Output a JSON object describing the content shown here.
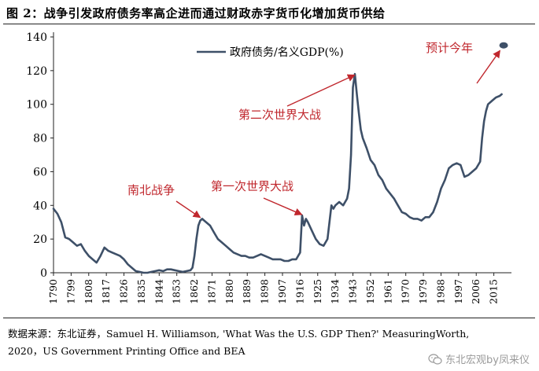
{
  "figure": {
    "title": "图 2：战争引发政府债务率高企进而通过财政赤字货币化增加货币供给",
    "source_line1": "数据来源：东北证券，Samuel H. Williamson, 'What Was the U.S. GDP Then?' MeasuringWorth,",
    "source_line2": "2020，US Government Printing Office and BEA",
    "watermark": "东北宏观by凤来仪",
    "watermark_icon": "wechat-icon"
  },
  "chart_data": {
    "type": "line",
    "title": "",
    "xlabel": "",
    "ylabel": "",
    "ylim": [
      0,
      140
    ],
    "yticks": [
      0,
      20,
      40,
      60,
      80,
      100,
      120,
      140
    ],
    "xlim": [
      1790,
      2024
    ],
    "xticks": [
      "1790",
      "1799",
      "1808",
      "1817",
      "1826",
      "1835",
      "1844",
      "1853",
      "1862",
      "1871",
      "1880",
      "1889",
      "1898",
      "1907",
      "1916",
      "1925",
      "1934",
      "1943",
      "1952",
      "1961",
      "1970",
      "1979",
      "1988",
      "1997",
      "2006",
      "2015"
    ],
    "grid": false,
    "legend_position": "top-center",
    "line_color": "#3e5068",
    "annotation_color": "#c0272d",
    "series": [
      {
        "name": "政府债务/名义GDP(%)",
        "x": [
          1790,
          1792,
          1794,
          1796,
          1798,
          1800,
          1802,
          1804,
          1806,
          1808,
          1810,
          1812,
          1814,
          1816,
          1818,
          1820,
          1822,
          1824,
          1826,
          1828,
          1830,
          1832,
          1834,
          1836,
          1838,
          1840,
          1842,
          1844,
          1846,
          1848,
          1850,
          1852,
          1854,
          1856,
          1858,
          1860,
          1861,
          1862,
          1863,
          1864,
          1865,
          1866,
          1867,
          1868,
          1870,
          1872,
          1874,
          1876,
          1878,
          1880,
          1882,
          1884,
          1886,
          1888,
          1890,
          1892,
          1894,
          1896,
          1898,
          1900,
          1902,
          1904,
          1906,
          1908,
          1910,
          1912,
          1914,
          1916,
          1917,
          1918,
          1919,
          1920,
          1922,
          1924,
          1926,
          1928,
          1930,
          1931,
          1932,
          1933,
          1934,
          1936,
          1938,
          1940,
          1941,
          1942,
          1943,
          1944,
          1945,
          1946,
          1947,
          1948,
          1950,
          1952,
          1954,
          1956,
          1958,
          1960,
          1962,
          1964,
          1966,
          1968,
          1970,
          1972,
          1974,
          1976,
          1978,
          1980,
          1982,
          1984,
          1986,
          1988,
          1990,
          1992,
          1994,
          1996,
          1998,
          2000,
          2002,
          2004,
          2006,
          2008,
          2009,
          2010,
          2011,
          2012,
          2014,
          2016,
          2018,
          2019
        ],
        "values": [
          38,
          35,
          30,
          21,
          20,
          18,
          16,
          17,
          13,
          10,
          8,
          6,
          10,
          15,
          13,
          12,
          11,
          10,
          8,
          5,
          3,
          1,
          0.5,
          0,
          0,
          0.5,
          1,
          1.5,
          1,
          2,
          2,
          1.5,
          1,
          0.5,
          1,
          1.5,
          3,
          10,
          20,
          28,
          31,
          32,
          31,
          30,
          28,
          24,
          20,
          18,
          16,
          14,
          12,
          11,
          10,
          10,
          9,
          9,
          10,
          11,
          10,
          9,
          8,
          8,
          8,
          7,
          7,
          8,
          8,
          12,
          34,
          28,
          32,
          30,
          25,
          20,
          17,
          16,
          20,
          30,
          40,
          38,
          40,
          42,
          40,
          44,
          50,
          70,
          110,
          118,
          106,
          95,
          85,
          80,
          74,
          67,
          64,
          58,
          55,
          50,
          47,
          44,
          40,
          36,
          35,
          33,
          32,
          32,
          31,
          33,
          33,
          36,
          42,
          50,
          55,
          62,
          64,
          65,
          64,
          57,
          58,
          60,
          62,
          66,
          80,
          90,
          96,
          100,
          102,
          104,
          105,
          106
        ]
      }
    ],
    "projection": {
      "label": "预计今年",
      "x": 2020,
      "value": 135
    },
    "annotations": [
      {
        "text": "南北战争",
        "x": 1866,
        "value": 32
      },
      {
        "text": "第一次世界大战",
        "x": 1918,
        "value": 34
      },
      {
        "text": "第二次世界大战",
        "x": 1945,
        "value": 118
      },
      {
        "text": "预计今年",
        "x": 2020,
        "value": 135
      }
    ]
  }
}
